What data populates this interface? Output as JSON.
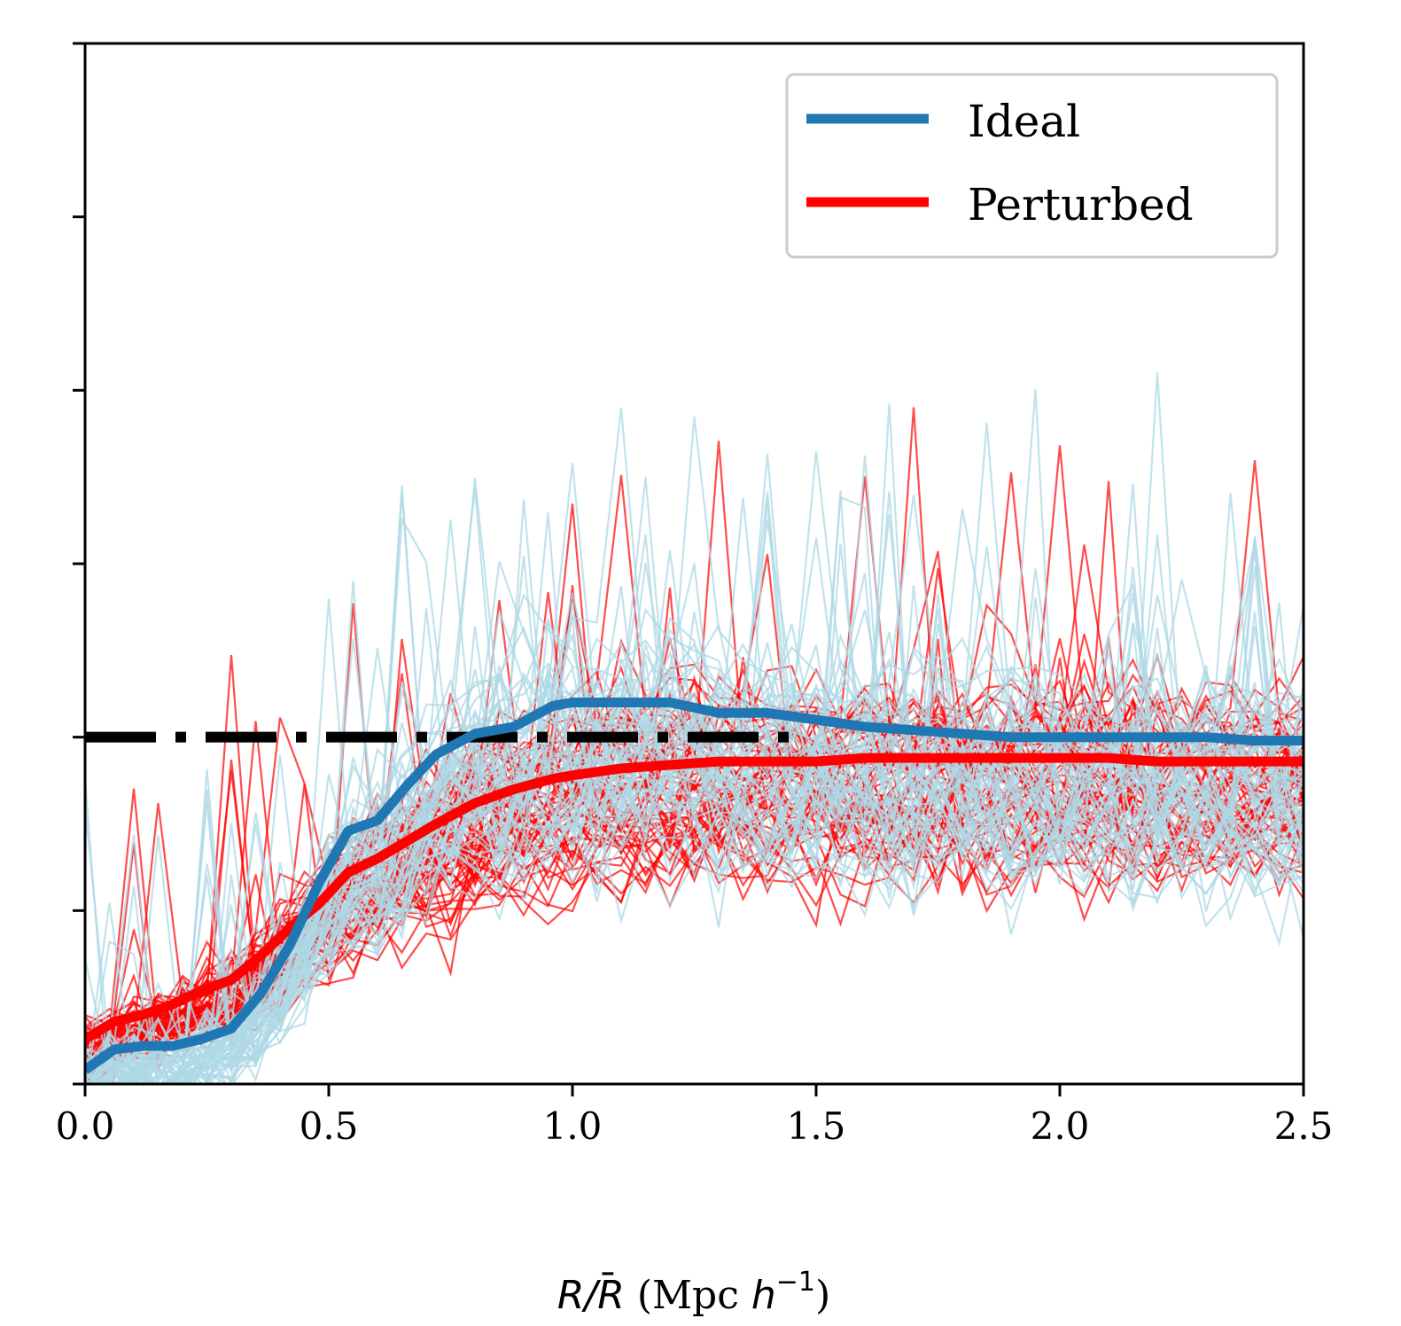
{
  "chart_data": {
    "type": "line",
    "title": "",
    "xlabel": "R/R̄ (Mpc h⁻¹)",
    "xlabel_parts": {
      "r": "R",
      "slash": "/",
      "rbar": "R",
      "bar": "¯",
      "unit_open": " (Mpc ",
      "h": "h",
      "exp": "−1",
      "unit_close": ")"
    },
    "ylabel": "",
    "xlim": [
      0.0,
      2.5
    ],
    "ylim": [
      0.0,
      3.0
    ],
    "xticks": [
      "0.0",
      "0.5",
      "1.0",
      "1.5",
      "2.0",
      "2.5"
    ],
    "xtick_values": [
      0.0,
      0.5,
      1.0,
      1.5,
      2.0,
      2.5
    ],
    "ytick_values": [
      0.0,
      0.5,
      1.0,
      1.5,
      2.0,
      2.5,
      3.0
    ],
    "legend": {
      "position": "upper right",
      "entries": [
        "Ideal",
        "Perturbed"
      ]
    },
    "reference_line": {
      "y": 1.0,
      "x_end": 1.45,
      "style": "dashdot",
      "color": "#000000"
    },
    "x": [
      0.0,
      0.06,
      0.12,
      0.18,
      0.24,
      0.3,
      0.36,
      0.42,
      0.48,
      0.54,
      0.6,
      0.66,
      0.72,
      0.8,
      0.88,
      0.96,
      1.0,
      1.1,
      1.2,
      1.3,
      1.4,
      1.5,
      1.6,
      1.7,
      1.8,
      1.9,
      2.0,
      2.1,
      2.2,
      2.3,
      2.4,
      2.5
    ],
    "series": [
      {
        "name": "Ideal",
        "color": "#1f77b4",
        "values": [
          0.04,
          0.1,
          0.11,
          0.11,
          0.13,
          0.16,
          0.26,
          0.4,
          0.58,
          0.73,
          0.76,
          0.86,
          0.95,
          1.01,
          1.03,
          1.09,
          1.1,
          1.1,
          1.1,
          1.07,
          1.07,
          1.05,
          1.03,
          1.02,
          1.01,
          1.0,
          1.0,
          1.0,
          1.0,
          1.0,
          0.99,
          0.99
        ]
      },
      {
        "name": "Perturbed",
        "color": "#ff0000",
        "values": [
          0.13,
          0.18,
          0.2,
          0.23,
          0.27,
          0.3,
          0.37,
          0.45,
          0.52,
          0.61,
          0.65,
          0.7,
          0.75,
          0.81,
          0.85,
          0.88,
          0.89,
          0.91,
          0.92,
          0.93,
          0.93,
          0.93,
          0.94,
          0.94,
          0.94,
          0.94,
          0.94,
          0.94,
          0.93,
          0.93,
          0.93,
          0.93
        ]
      }
    ],
    "individual_curves": {
      "ideal_count": 60,
      "perturbed_count": 60,
      "ideal_color": "#add8e6",
      "perturbed_color": "#ff0000"
    }
  }
}
